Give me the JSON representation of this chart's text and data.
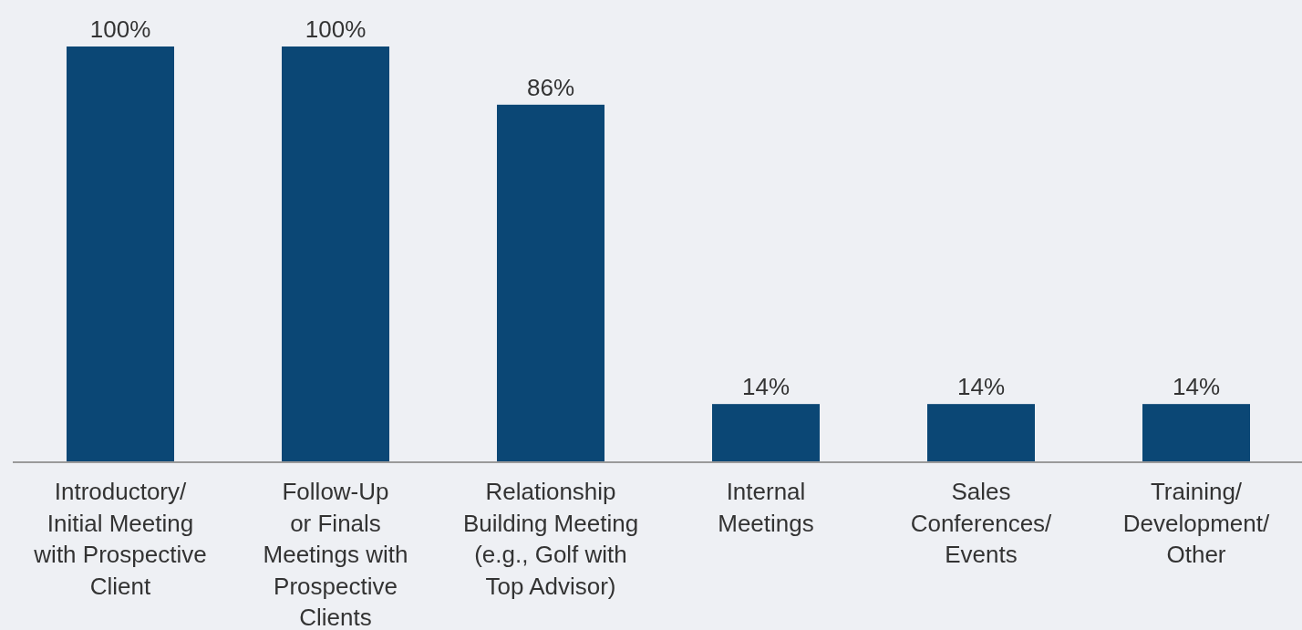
{
  "chart_data": {
    "type": "bar",
    "categories": [
      "Introductory/\nInitial Meeting\nwith Prospective\nClient",
      "Follow-Up\nor Finals\nMeetings with\nProspective\nClients",
      "Relationship\nBuilding Meeting\n(e.g., Golf with\nTop Advisor)",
      "Internal\nMeetings",
      "Sales\nConferences/\nEvents",
      "Training/\nDevelopment/\nOther"
    ],
    "values": [
      100,
      100,
      86,
      14,
      14,
      14
    ],
    "value_labels": [
      "100%",
      "100%",
      "86%",
      "14%",
      "14%",
      "14%"
    ],
    "color": "#0b4775"
  }
}
